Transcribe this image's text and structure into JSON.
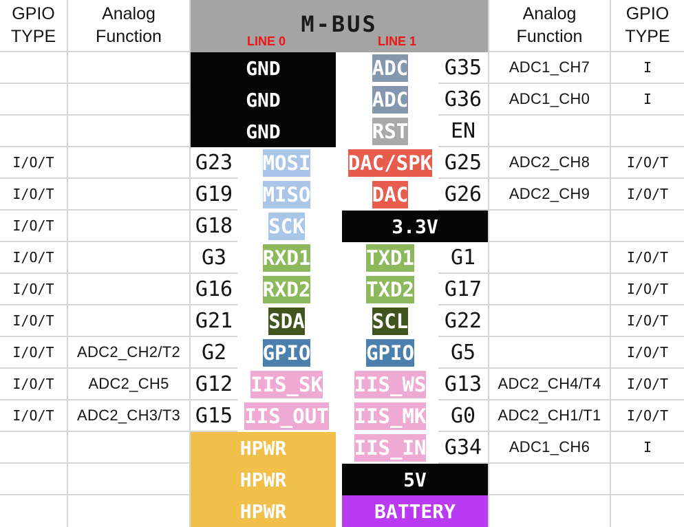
{
  "header": {
    "gpio_type": "GPIO\nTYPE",
    "analog_function": "Analog\nFunction",
    "bus_title": "M-BUS",
    "line0_label": "LINE 0",
    "line1_label": "LINE 1"
  },
  "colors": {
    "header_gray": "#a4a4a4",
    "line_label_red": "#ee1515",
    "power_black": "#050505",
    "adc_blue_gray": "#8497ae",
    "rst_gray": "#a9a9a9",
    "spi_light_blue": "#a9c6e8",
    "dac_red": "#e85c4e",
    "uart_green": "#8cb95c",
    "i2c_dark_green": "#40551d",
    "gpio_steel_blue": "#4b80ae",
    "iis_pink": "#efaad4",
    "hpwr_yellow": "#f1c04a",
    "battery_purple": "#b93af2",
    "grid_line": "#d6d6d6"
  },
  "blocks": {
    "gnd": [
      "GND",
      "GND",
      "GND"
    ],
    "hpwr": [
      "HPWR",
      "HPWR",
      "HPWR"
    ],
    "v33": "3.3V",
    "v5": "5V",
    "battery": "BATTERY"
  },
  "rows": [
    {
      "type_l": "",
      "analog_l": "",
      "pin_l": "",
      "line0": "",
      "line1": "ADC",
      "pin_r": "G35",
      "analog_r": "ADC1_CH7",
      "type_r": "I"
    },
    {
      "type_l": "",
      "analog_l": "",
      "pin_l": "",
      "line0": "",
      "line1": "ADC",
      "pin_r": "G36",
      "analog_r": "ADC1_CH0",
      "type_r": "I"
    },
    {
      "type_l": "",
      "analog_l": "",
      "pin_l": "",
      "line0": "",
      "line1": "RST",
      "pin_r": "EN",
      "analog_r": "",
      "type_r": ""
    },
    {
      "type_l": "I/O/T",
      "analog_l": "",
      "pin_l": "G23",
      "line0": "MOSI",
      "line1": "DAC/SPK",
      "pin_r": "G25",
      "analog_r": "ADC2_CH8",
      "type_r": "I/O/T"
    },
    {
      "type_l": "I/O/T",
      "analog_l": "",
      "pin_l": "G19",
      "line0": "MISO",
      "line1": "DAC",
      "pin_r": "G26",
      "analog_r": "ADC2_CH9",
      "type_r": "I/O/T"
    },
    {
      "type_l": "I/O/T",
      "analog_l": "",
      "pin_l": "G18",
      "line0": "SCK",
      "line1": "",
      "pin_r": "",
      "analog_r": "",
      "type_r": ""
    },
    {
      "type_l": "I/O/T",
      "analog_l": "",
      "pin_l": "G3",
      "line0": "RXD1",
      "line1": "TXD1",
      "pin_r": "G1",
      "analog_r": "",
      "type_r": "I/O/T"
    },
    {
      "type_l": "I/O/T",
      "analog_l": "",
      "pin_l": "G16",
      "line0": "RXD2",
      "line1": "TXD2",
      "pin_r": "G17",
      "analog_r": "",
      "type_r": "I/O/T"
    },
    {
      "type_l": "I/O/T",
      "analog_l": "",
      "pin_l": "G21",
      "line0": "SDA",
      "line1": "SCL",
      "pin_r": "G22",
      "analog_r": "",
      "type_r": "I/O/T"
    },
    {
      "type_l": "I/O/T",
      "analog_l": "ADC2_CH2/T2",
      "pin_l": "G2",
      "line0": "GPIO",
      "line1": "GPIO",
      "pin_r": "G5",
      "analog_r": "",
      "type_r": "I/O/T"
    },
    {
      "type_l": "I/O/T",
      "analog_l": "ADC2_CH5",
      "pin_l": "G12",
      "line0": "IIS_SK",
      "line1": "IIS_WS",
      "pin_r": "G13",
      "analog_r": "ADC2_CH4/T4",
      "type_r": "I/O/T"
    },
    {
      "type_l": "I/O/T",
      "analog_l": "ADC2_CH3/T3",
      "pin_l": "G15",
      "line0": "IIS_OUT",
      "line1": "IIS_MK",
      "pin_r": "G0",
      "analog_r": "ADC2_CH1/T1",
      "type_r": "I/O/T"
    },
    {
      "type_l": "",
      "analog_l": "",
      "pin_l": "",
      "line0": "",
      "line1": "IIS_IN",
      "pin_r": "G34",
      "analog_r": "ADC1_CH6",
      "type_r": "I"
    },
    {
      "type_l": "",
      "analog_l": "",
      "pin_l": "",
      "line0": "",
      "line1": "",
      "pin_r": "",
      "analog_r": "",
      "type_r": ""
    },
    {
      "type_l": "",
      "analog_l": "",
      "pin_l": "",
      "line0": "",
      "line1": "",
      "pin_r": "",
      "analog_r": "",
      "type_r": ""
    }
  ]
}
